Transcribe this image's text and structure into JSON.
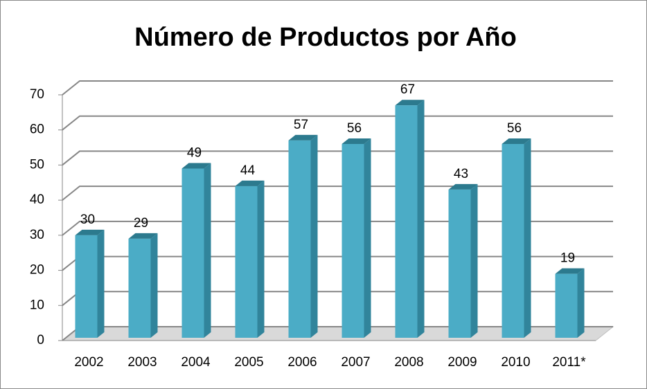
{
  "chart_data": {
    "type": "bar3d",
    "title": "Número de Productos por Año",
    "categories": [
      "2002",
      "2003",
      "2004",
      "2005",
      "2006",
      "2007",
      "2008",
      "2009",
      "2010",
      "2011*"
    ],
    "values": [
      30,
      29,
      49,
      44,
      57,
      56,
      67,
      43,
      56,
      19
    ],
    "color": "#4bacc6",
    "ylim": [
      0,
      70
    ],
    "yticks": [
      0,
      10,
      20,
      30,
      40,
      50,
      60,
      70
    ],
    "grid": true
  }
}
